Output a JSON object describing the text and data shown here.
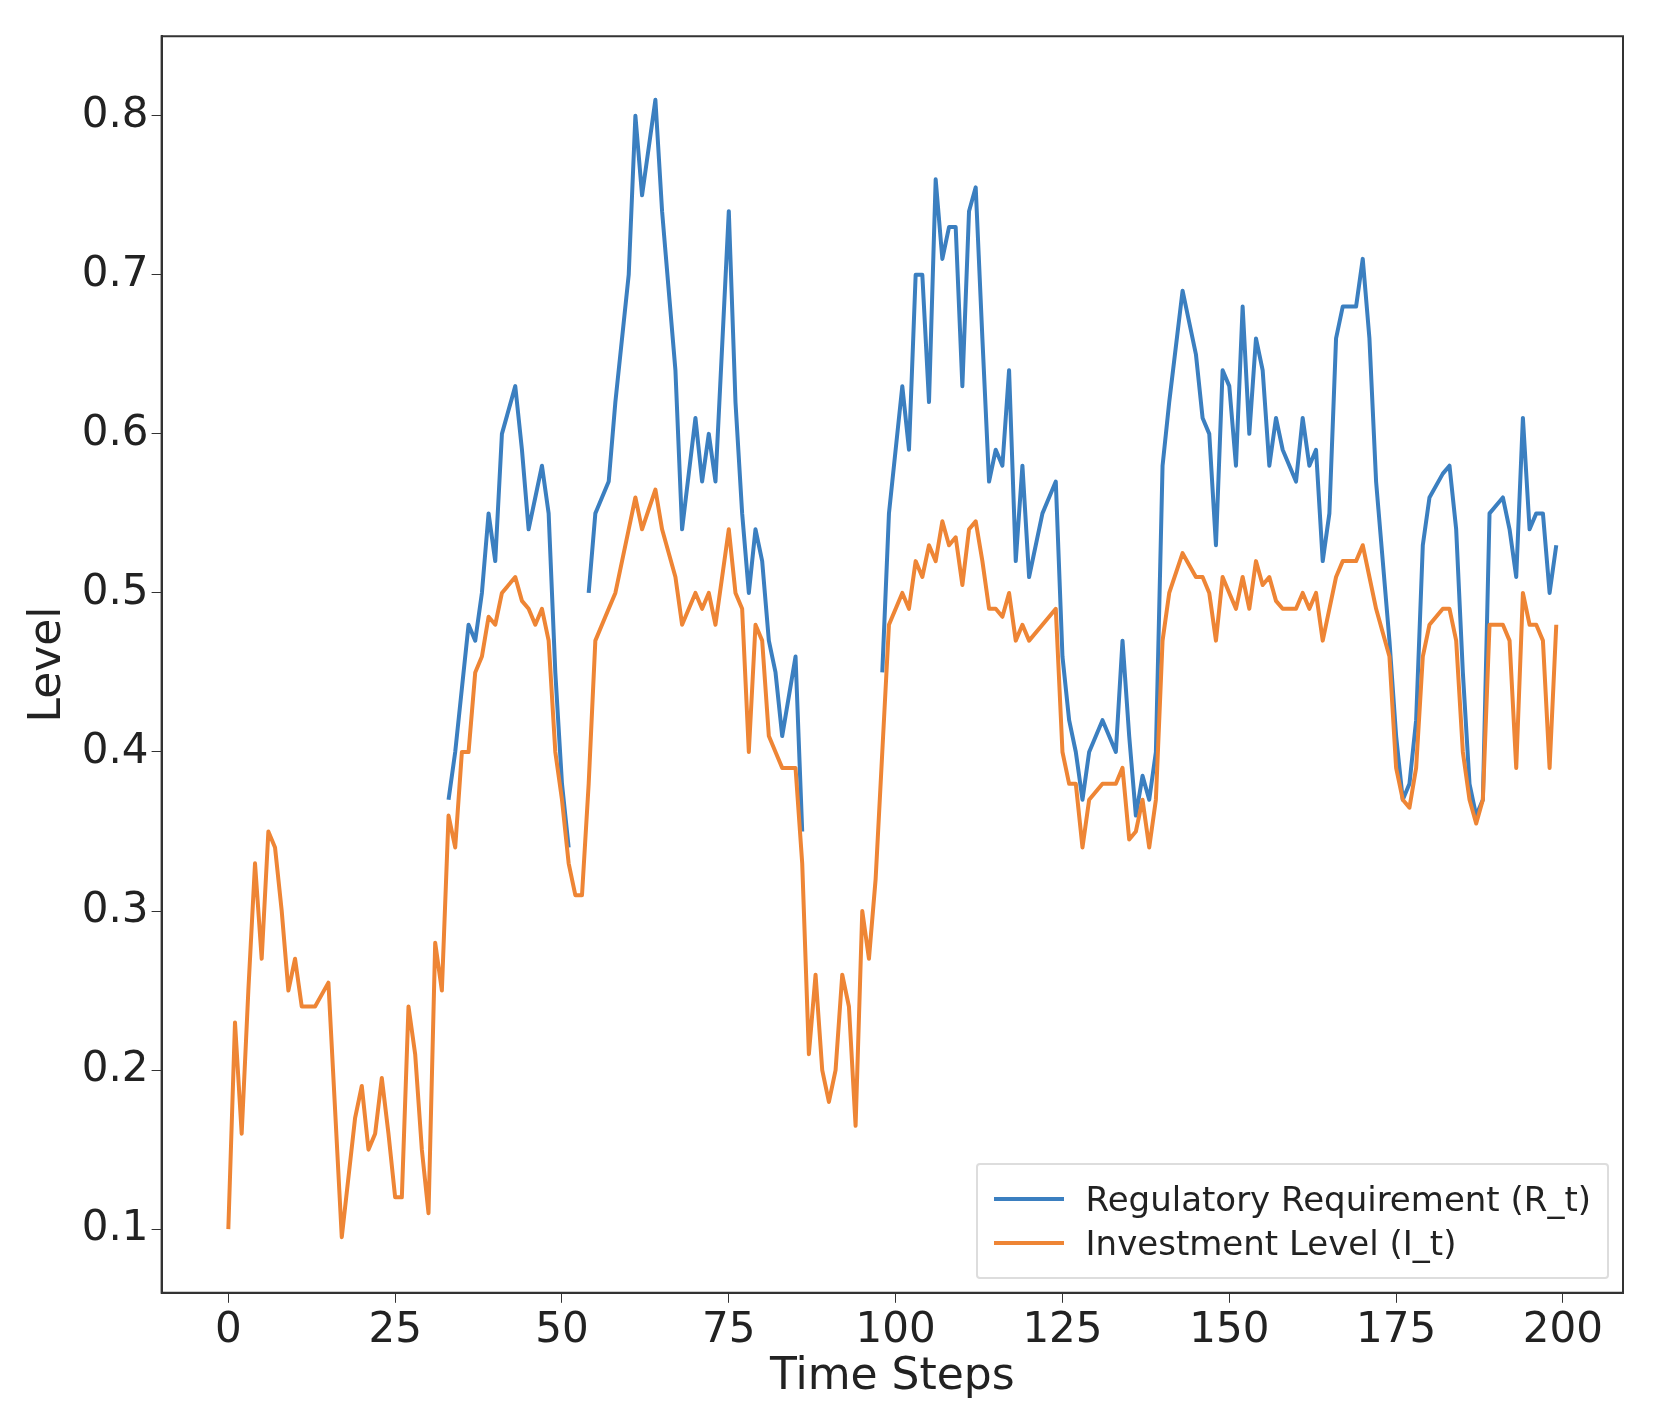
{
  "chart_data": {
    "type": "line",
    "xlabel": "Time Steps",
    "ylabel": "Level",
    "xlim": [
      -10,
      209
    ],
    "xticks": [
      0,
      25,
      50,
      75,
      100,
      125,
      150,
      175,
      200
    ],
    "ylim": [
      0.06,
      0.85
    ],
    "yticks": [
      0.1,
      0.2,
      0.3,
      0.4,
      0.5,
      0.6,
      0.7,
      0.8
    ],
    "legend": "bottom right",
    "line_style": "solid",
    "marker": "none",
    "series": [
      {
        "name": "Regulatory Requirement (R_t)",
        "color": "#3b7fc0",
        "x": [
          33,
          34,
          35,
          36,
          37,
          38,
          39,
          40,
          41,
          43,
          44,
          45,
          46,
          47,
          48,
          49,
          50,
          51,
          52,
          53,
          54,
          55,
          57,
          58,
          60,
          61,
          62,
          64,
          65,
          67,
          68,
          70,
          71,
          72,
          73,
          75,
          76,
          77,
          78,
          79,
          80,
          81,
          82,
          83,
          85,
          86,
          92,
          98,
          99,
          101,
          102,
          103,
          104,
          105,
          106,
          107,
          108,
          109,
          110,
          111,
          112,
          113,
          114,
          115,
          116,
          117,
          118,
          119,
          120,
          122,
          124,
          125,
          126,
          127,
          128,
          129,
          131,
          133,
          134,
          135,
          136,
          137,
          138,
          139,
          140,
          141,
          143,
          145,
          146,
          147,
          148,
          149,
          150,
          151,
          152,
          153,
          154,
          155,
          156,
          157,
          158,
          160,
          161,
          162,
          163,
          164,
          165,
          166,
          167,
          169,
          170,
          171,
          172,
          174,
          175,
          176,
          177,
          178,
          179,
          180,
          182,
          183,
          184,
          185,
          186,
          187,
          188,
          189,
          191,
          192,
          193,
          194,
          195,
          196,
          197,
          198,
          199
        ],
        "values": [
          0.37,
          0.4,
          0.44,
          0.48,
          0.47,
          0.5,
          0.55,
          0.52,
          0.6,
          0.63,
          0.59,
          0.54,
          0.56,
          0.58,
          0.55,
          0.45,
          0.38,
          0.34,
          null,
          null,
          0.5,
          0.55,
          0.57,
          0.62,
          0.7,
          0.8,
          0.75,
          0.81,
          0.74,
          0.64,
          0.54,
          0.61,
          0.57,
          0.6,
          0.57,
          0.74,
          0.62,
          0.55,
          0.5,
          0.54,
          0.52,
          0.47,
          0.45,
          0.41,
          0.46,
          0.35,
          null,
          0.45,
          0.55,
          0.63,
          0.59,
          0.7,
          0.7,
          0.62,
          0.76,
          0.71,
          0.73,
          0.73,
          0.63,
          0.74,
          0.755,
          0.66,
          0.57,
          0.59,
          0.58,
          0.64,
          0.52,
          0.58,
          0.51,
          0.55,
          0.57,
          0.46,
          0.42,
          0.4,
          0.37,
          0.4,
          0.42,
          0.4,
          0.47,
          0.41,
          0.36,
          0.385,
          0.37,
          0.4,
          0.58,
          0.62,
          0.69,
          0.65,
          0.61,
          0.6,
          0.53,
          0.64,
          0.63,
          0.58,
          0.68,
          0.6,
          0.66,
          0.64,
          0.58,
          0.61,
          0.59,
          0.57,
          0.61,
          0.58,
          0.59,
          0.52,
          0.55,
          0.66,
          0.68,
          0.68,
          0.71,
          0.66,
          0.57,
          0.47,
          0.41,
          0.37,
          0.38,
          0.42,
          0.53,
          0.56,
          0.575,
          0.58,
          0.54,
          0.45,
          0.38,
          0.36,
          0.37,
          0.55,
          0.56,
          0.54,
          0.51,
          0.61,
          0.54,
          0.55,
          0.55,
          0.5,
          0.53
        ]
      },
      {
        "name": "Investment Level (I_t)",
        "color": "#ee8535",
        "x": [
          0,
          1,
          2,
          3,
          4,
          5,
          6,
          7,
          8,
          9,
          10,
          11,
          13,
          15,
          17,
          19,
          20,
          21,
          22,
          23,
          24,
          25,
          26,
          27,
          28,
          29,
          30,
          31,
          32,
          33,
          34,
          35,
          36,
          37,
          38,
          39,
          40,
          41,
          43,
          44,
          45,
          46,
          47,
          48,
          49,
          50,
          51,
          52,
          53,
          54,
          55,
          57,
          58,
          60,
          61,
          62,
          64,
          65,
          67,
          68,
          70,
          71,
          72,
          73,
          75,
          76,
          77,
          78,
          79,
          80,
          81,
          82,
          83,
          85,
          86,
          87,
          88,
          89,
          90,
          91,
          92,
          93,
          94,
          95,
          96,
          97,
          98,
          99,
          101,
          102,
          103,
          104,
          105,
          106,
          107,
          108,
          109,
          110,
          111,
          112,
          113,
          114,
          115,
          116,
          117,
          118,
          119,
          120,
          122,
          124,
          125,
          126,
          127,
          128,
          129,
          131,
          133,
          134,
          135,
          136,
          137,
          138,
          139,
          140,
          141,
          143,
          145,
          146,
          147,
          148,
          149,
          150,
          151,
          152,
          153,
          154,
          155,
          156,
          157,
          158,
          160,
          161,
          162,
          163,
          164,
          165,
          166,
          167,
          169,
          170,
          171,
          172,
          174,
          175,
          176,
          177,
          178,
          179,
          180,
          182,
          183,
          184,
          185,
          186,
          187,
          188,
          189,
          191,
          192,
          193,
          194,
          195,
          196,
          197,
          198,
          199
        ],
        "values": [
          0.1,
          0.23,
          0.16,
          0.25,
          0.33,
          0.27,
          0.35,
          0.34,
          0.3,
          0.25,
          0.27,
          0.24,
          0.24,
          0.255,
          0.095,
          0.17,
          0.19,
          0.15,
          0.16,
          0.195,
          0.16,
          0.12,
          0.12,
          0.24,
          0.21,
          0.15,
          0.11,
          0.28,
          0.25,
          0.36,
          0.34,
          0.4,
          0.4,
          0.45,
          0.46,
          0.485,
          0.48,
          0.5,
          0.51,
          0.495,
          0.49,
          0.48,
          0.49,
          0.47,
          0.4,
          0.37,
          0.33,
          0.31,
          0.31,
          0.38,
          0.47,
          0.49,
          0.5,
          0.54,
          0.56,
          0.54,
          0.565,
          0.54,
          0.51,
          0.48,
          0.5,
          0.49,
          0.5,
          0.48,
          0.54,
          0.5,
          0.49,
          0.4,
          0.48,
          0.47,
          0.41,
          0.4,
          0.39,
          0.39,
          0.33,
          0.21,
          0.26,
          0.2,
          0.18,
          0.2,
          0.26,
          0.24,
          0.165,
          0.3,
          0.27,
          0.32,
          0.4,
          0.48,
          0.5,
          0.49,
          0.52,
          0.51,
          0.53,
          0.52,
          0.545,
          0.53,
          0.535,
          0.505,
          0.54,
          0.545,
          0.52,
          0.49,
          0.49,
          0.485,
          0.5,
          0.47,
          0.48,
          0.47,
          0.48,
          0.49,
          0.4,
          0.38,
          0.38,
          0.34,
          0.37,
          0.38,
          0.38,
          0.39,
          0.345,
          0.35,
          0.37,
          0.34,
          0.37,
          0.47,
          0.5,
          0.525,
          0.51,
          0.51,
          0.5,
          0.47,
          0.51,
          0.5,
          0.49,
          0.51,
          0.49,
          0.52,
          0.505,
          0.51,
          0.495,
          0.49,
          0.49,
          0.5,
          0.49,
          0.5,
          0.47,
          0.49,
          0.51,
          0.52,
          0.52,
          0.53,
          0.51,
          0.49,
          0.46,
          0.39,
          0.37,
          0.365,
          0.39,
          0.46,
          0.48,
          0.49,
          0.49,
          0.47,
          0.4,
          0.37,
          0.355,
          0.37,
          0.48,
          0.48,
          0.47,
          0.39,
          0.5,
          0.48,
          0.48,
          0.47,
          0.39,
          0.48
        ]
      }
    ]
  }
}
